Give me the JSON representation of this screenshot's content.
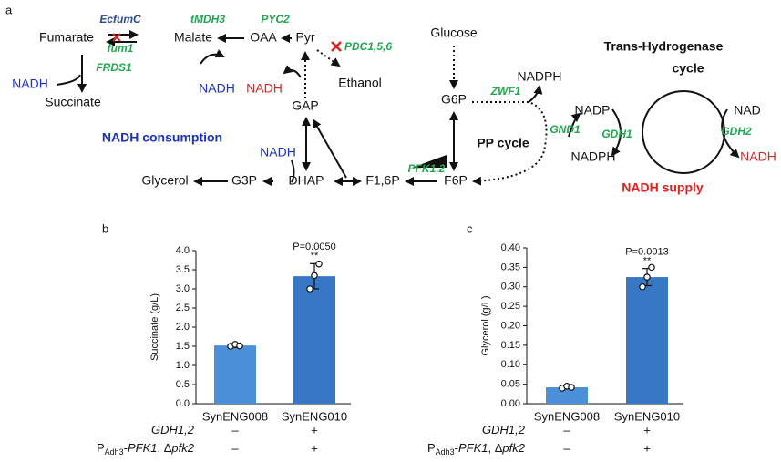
{
  "diagram": {
    "panel": "a",
    "labels": {
      "fumarate": "Fumarate",
      "ecfumc": "EcfumC",
      "fum1": "fum1",
      "malate": "Malate",
      "tmdh3": "tMDH3",
      "oaa": "OAA",
      "pyc2": "PYC2",
      "pyr": "Pyr",
      "pdc": "PDC1,5,6",
      "ethanol": "Ethanol",
      "nadh1": "NADH",
      "frds1": "FRDS1",
      "succinate": "Succinate",
      "nadh2": "NADH",
      "nadh3": "NADH",
      "gap": "GAP",
      "consumption": "NADH consumption",
      "nadh4": "NADH",
      "glycerol": "Glycerol",
      "g3p": "G3P",
      "dhap": "DHAP",
      "f16p": "F1,6P",
      "pfk": "PFK1,2",
      "f6p": "F6P",
      "glucose": "Glucose",
      "g6p": "G6P",
      "nadph1": "NADPH",
      "zwf1": "ZWF1",
      "ppcycle": "PP cycle",
      "gnd1": "GND1",
      "nadp": "NADP",
      "nadph2": "NADPH",
      "gdh1": "GDH1",
      "trans": "Trans-Hydrogenase",
      "cycle": "cycle",
      "nad": "NAD",
      "gdh2": "GDH2",
      "nadh5": "NADH",
      "supply": "NADH supply"
    }
  },
  "chart_data": [
    {
      "type": "bar",
      "panel": "b",
      "y_label": "Succinate (g/L)",
      "categories": [
        "SynENG008",
        "SynENG010"
      ],
      "values": [
        1.52,
        3.33
      ],
      "errors": [
        0.05,
        0.33
      ],
      "points": [
        [
          1.5,
          1.55,
          1.51
        ],
        [
          3.0,
          3.35,
          3.65
        ]
      ],
      "color": [
        "#4a8fd8",
        "#3777c4"
      ],
      "ylim": [
        0,
        4
      ],
      "yticks": [
        {
          "value": 0,
          "label": "0.0"
        },
        {
          "value": 0.5,
          "label": "0.5"
        },
        {
          "value": 1,
          "label": "1.0"
        },
        {
          "value": 1.5,
          "label": "1.5"
        },
        {
          "value": 2,
          "label": "2.0"
        },
        {
          "value": 2.5,
          "label": "2.5"
        },
        {
          "value": 3,
          "label": "3.0"
        },
        {
          "value": 3.5,
          "label": "3.5"
        },
        {
          "value": 4,
          "label": "4.0"
        }
      ],
      "annotation": "P=0.0050",
      "significance": "**",
      "conditions": [
        {
          "label": [
            {
              "text": "GDH1,2",
              "italic": true
            }
          ],
          "marks": [
            "–",
            "+"
          ]
        },
        {
          "label": [
            {
              "text": "P"
            },
            {
              "text": "Adh3",
              "sub": true
            },
            {
              "text": "-"
            },
            {
              "text": "PFK1",
              "italic": true
            },
            {
              "text": ", Δ"
            },
            {
              "text": "pfk2",
              "italic": true
            }
          ],
          "marks": [
            "–",
            "+"
          ]
        }
      ]
    },
    {
      "type": "bar",
      "panel": "c",
      "y_label": "Glycerol (g/L)",
      "categories": [
        "SynENG008",
        "SynENG010"
      ],
      "values": [
        0.042,
        0.325
      ],
      "errors": [
        0.004,
        0.022
      ],
      "points": [
        [
          0.04,
          0.045,
          0.042
        ],
        [
          0.3,
          0.325,
          0.35
        ]
      ],
      "color": [
        "#4a8fd8",
        "#3777c4"
      ],
      "ylim": [
        0,
        0.4
      ],
      "yticks": [
        {
          "value": 0,
          "label": "0.00"
        },
        {
          "value": 0.05,
          "label": "0.05"
        },
        {
          "value": 0.1,
          "label": "0.10"
        },
        {
          "value": 0.15,
          "label": "0.15"
        },
        {
          "value": 0.2,
          "label": "0.20"
        },
        {
          "value": 0.25,
          "label": "0.25"
        },
        {
          "value": 0.3,
          "label": "0.30"
        },
        {
          "value": 0.35,
          "label": "0.35"
        },
        {
          "value": 0.4,
          "label": "0.40"
        }
      ],
      "annotation": "P=0.0013",
      "significance": "**",
      "conditions": [
        {
          "label": [
            {
              "text": "GDH1,2",
              "italic": true
            }
          ],
          "marks": [
            "–",
            "+"
          ]
        },
        {
          "label": [
            {
              "text": "P"
            },
            {
              "text": "Adh3",
              "sub": true
            },
            {
              "text": "-"
            },
            {
              "text": "PFK1",
              "italic": true
            },
            {
              "text": ", Δ"
            },
            {
              "text": "pfk2",
              "italic": true
            }
          ],
          "marks": [
            "–",
            "+"
          ]
        }
      ]
    }
  ]
}
